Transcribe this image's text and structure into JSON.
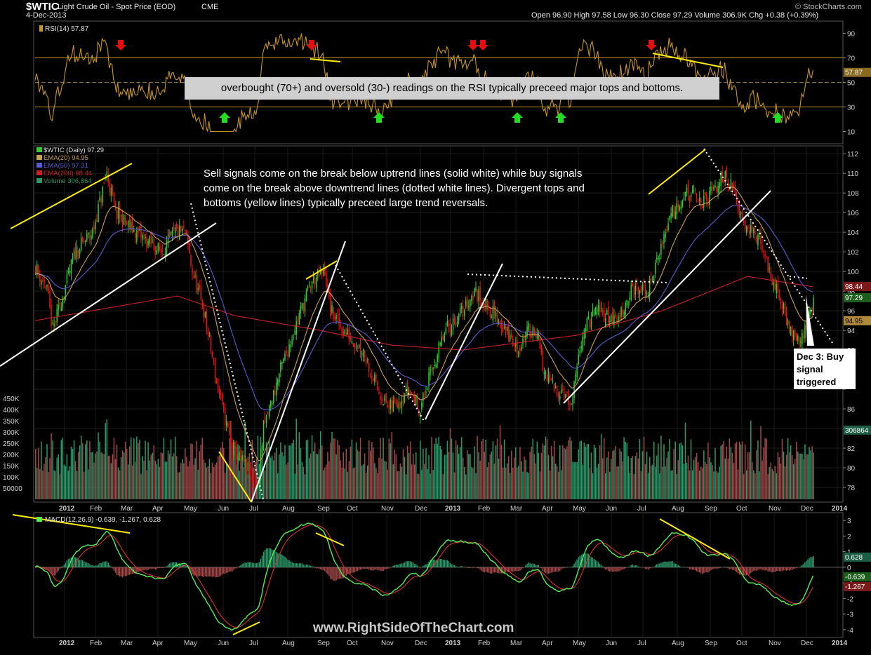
{
  "header": {
    "symbol": "$WTIC",
    "description": "Light Crude Oil - Spot Price (EOD)",
    "exchange": "CME",
    "date": "4-Dec-2013",
    "ohlc": "Open 96.90   High 97.58   Low 96.30   Close 97.29   Volume 306.9K   Chg +0.38 (+0.39%)",
    "brand": "© StockCharts.com",
    "watermark": "www.RightSideOfTheChart.com"
  },
  "annotations": {
    "rsi_note": "overbought (70+) and oversold (30-) readings on the RSI typically preceed major tops and bottoms.",
    "main_note_line1": "Sell signals come on the break below uptrend lines (solid white) while buy signals",
    "main_note_line2": "come on the break above downtrend lines (dotted white lines). Divergent tops and",
    "main_note_line3": "bottoms (yellow lines) typically preceed large trend reversals.",
    "dec3_line1": "Dec 3: Buy",
    "dec3_line2": "signal",
    "dec3_line3": "triggered"
  },
  "colors": {
    "background": "#000000",
    "up_candle": "#33cc33",
    "down_candle": "#ee1111",
    "ema20": "#c8a050",
    "ema50": "#5a5ad0",
    "ema200": "#cc2222",
    "rsi": "#c8961e",
    "macd": "#55ee55",
    "signal": "#ee3333",
    "trend_white": "#ffffff",
    "trend_yellow": "#ffee00",
    "volume_up": "#2a9a6a",
    "volume_down": "#a24848"
  },
  "chart_data": [
    {
      "panel": "rsi",
      "type": "line",
      "title": "RSI(14) 57.87",
      "y_ticks": [
        10,
        30,
        50,
        70,
        90
      ],
      "ylim": [
        0,
        100
      ],
      "last_value": "57.87",
      "overbought": 70,
      "oversold": 30
    },
    {
      "panel": "price",
      "type": "candlestick",
      "legend": [
        {
          "name": "$WTIC (Daily) 97.29",
          "color": "#33cc33"
        },
        {
          "name": "EMA(20) 94.95",
          "color": "#c8a050"
        },
        {
          "name": "EMA(50) 97.31",
          "color": "#5a5ad0"
        },
        {
          "name": "EMA(200) 98.44",
          "color": "#cc2222"
        },
        {
          "name": "Volume 306,864",
          "color": "#2a9a6a"
        }
      ],
      "y_ticks": [
        78,
        80,
        82,
        84,
        86,
        88,
        90,
        92,
        94,
        96,
        98,
        100,
        102,
        104,
        106,
        108,
        110,
        112
      ],
      "y_tick_labels": [
        "78",
        "80",
        "82",
        "84",
        "86",
        "",
        "90",
        "92",
        "94",
        "96",
        "98",
        "100",
        "102",
        "104",
        "106",
        "108",
        "110",
        "112"
      ],
      "ylim": [
        76.5,
        112.8
      ],
      "months": [
        "2012",
        "Feb",
        "Mar",
        "Apr",
        "May",
        "Jun",
        "Jul",
        "Aug",
        "Sep",
        "Oct",
        "Nov",
        "Dec",
        "2013",
        "Feb",
        "Mar",
        "Apr",
        "May",
        "Jun",
        "Jul",
        "Aug",
        "Sep",
        "Oct",
        "Nov",
        "Dec",
        "2014"
      ],
      "anchors": [
        [
          0,
          100.5
        ],
        [
          8,
          98
        ],
        [
          12,
          94
        ],
        [
          20,
          98
        ],
        [
          28,
          102
        ],
        [
          40,
          104
        ],
        [
          50,
          110
        ],
        [
          56,
          106
        ],
        [
          70,
          104
        ],
        [
          88,
          102
        ],
        [
          98,
          104
        ],
        [
          105,
          104
        ],
        [
          110,
          100
        ],
        [
          118,
          96
        ],
        [
          128,
          88
        ],
        [
          138,
          82
        ],
        [
          148,
          80
        ],
        [
          156,
          78
        ],
        [
          160,
          84
        ],
        [
          172,
          90
        ],
        [
          186,
          96
        ],
        [
          194,
          99
        ],
        [
          203,
          100
        ],
        [
          207,
          96
        ],
        [
          216,
          94
        ],
        [
          230,
          92
        ],
        [
          240,
          88
        ],
        [
          248,
          86
        ],
        [
          262,
          88
        ],
        [
          270,
          86
        ],
        [
          278,
          90
        ],
        [
          288,
          94
        ],
        [
          300,
          96
        ],
        [
          308,
          98
        ],
        [
          320,
          96
        ],
        [
          330,
          94
        ],
        [
          338,
          92
        ],
        [
          346,
          94
        ],
        [
          352,
          94
        ],
        [
          356,
          90
        ],
        [
          364,
          88
        ],
        [
          370,
          88
        ],
        [
          376,
          86
        ],
        [
          384,
          94
        ],
        [
          394,
          96
        ],
        [
          408,
          95
        ],
        [
          418,
          98
        ],
        [
          430,
          98
        ],
        [
          446,
          106
        ],
        [
          456,
          108
        ],
        [
          470,
          107
        ],
        [
          484,
          110
        ],
        [
          490,
          108
        ],
        [
          498,
          105
        ],
        [
          508,
          103
        ],
        [
          520,
          98
        ],
        [
          530,
          94
        ],
        [
          538,
          93
        ],
        [
          546,
          97.3
        ]
      ],
      "ema200_anchors": [
        [
          0,
          95
        ],
        [
          40,
          96
        ],
        [
          100,
          97.5
        ],
        [
          140,
          95.5
        ],
        [
          200,
          94
        ],
        [
          250,
          92.5
        ],
        [
          300,
          92
        ],
        [
          380,
          93.5
        ],
        [
          440,
          96
        ],
        [
          500,
          99.5
        ],
        [
          546,
          98.44
        ]
      ],
      "last_price": "97.29",
      "ema200_label": "98.44",
      "ema20_label": "94.95",
      "volume": {
        "y_ticks": [
          50000,
          100000,
          150000,
          200000,
          250000,
          300000,
          350000,
          400000,
          450000
        ],
        "y_tick_labels": [
          "50000",
          "100K",
          "150K",
          "200K",
          "250K",
          "300K",
          "350K",
          "400K",
          "450K"
        ],
        "last_label": "306864"
      }
    },
    {
      "panel": "macd",
      "type": "line",
      "title": "MACD(12,26,9) -0.639, -1.267, 0.628",
      "series": [
        {
          "name": "MACD",
          "color": "#55ee55"
        },
        {
          "name": "Signal",
          "color": "#ee3333"
        },
        {
          "name": "Histogram",
          "color": "#2a9a6a"
        }
      ],
      "y_ticks": [
        -4,
        -3,
        -2,
        -1,
        0,
        1,
        2,
        3
      ],
      "ylim": [
        -4.5,
        3.5
      ],
      "labels": {
        "histogram": "0.628",
        "macd": "-0.639",
        "signal": "-1.267"
      },
      "months": [
        "2012",
        "Feb",
        "Mar",
        "Apr",
        "May",
        "Jun",
        "Jul",
        "Aug",
        "Sep",
        "Oct",
        "Nov",
        "Dec",
        "2013",
        "Feb",
        "Mar",
        "Apr",
        "May",
        "Jun",
        "Jul",
        "Aug",
        "Sep",
        "Oct",
        "Nov",
        "Dec",
        "2014"
      ]
    }
  ]
}
